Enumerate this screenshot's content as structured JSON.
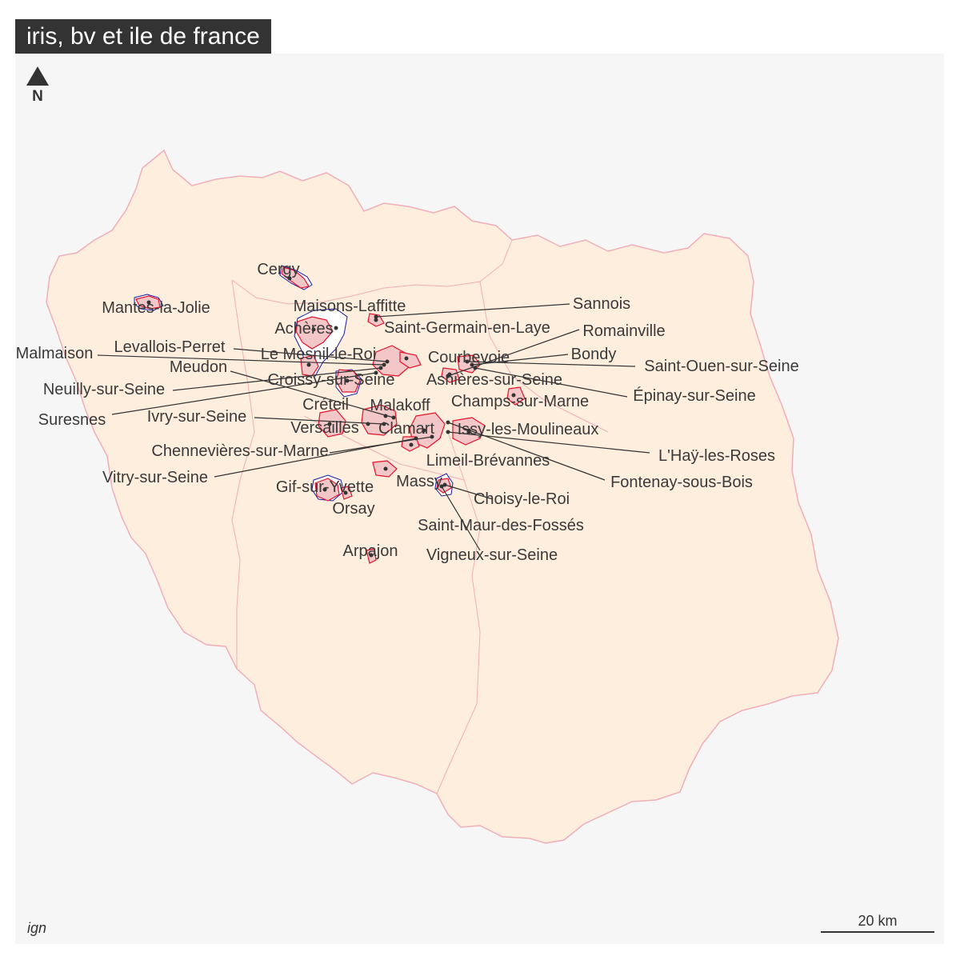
{
  "title": "iris, bv et ile de france",
  "north_label": "N",
  "source": "ign",
  "scale_label": "20 km",
  "colors": {
    "background": "#f6f6f6",
    "region_fill": "#fdeedd",
    "region_border": "#f2aeb8",
    "iris_border": "#e8102a",
    "bv_border": "#1a1aa0",
    "leader_line": "#333333",
    "title_bg": "#333333"
  },
  "cities": [
    {
      "name": "Cergy"
    },
    {
      "name": "Mantes-la-Jolie"
    },
    {
      "name": "Maisons-Laffitte"
    },
    {
      "name": "Sannois"
    },
    {
      "name": "Achères"
    },
    {
      "name": "Saint-Germain-en-Laye"
    },
    {
      "name": "Romainville"
    },
    {
      "name": "Levallois-Perret"
    },
    {
      "name": "Malmaison"
    },
    {
      "name": "Le Mesnil-le-Roi"
    },
    {
      "name": "Courbevoie"
    },
    {
      "name": "Bondy"
    },
    {
      "name": "Meudon"
    },
    {
      "name": "Saint-Ouen-sur-Seine"
    },
    {
      "name": "Croissy-sur-Seine"
    },
    {
      "name": "Asnières-sur-Seine"
    },
    {
      "name": "Neuilly-sur-Seine"
    },
    {
      "name": "Épinay-sur-Seine"
    },
    {
      "name": "Champs-sur-Marne"
    },
    {
      "name": "Créteil"
    },
    {
      "name": "Malakoff"
    },
    {
      "name": "Suresnes"
    },
    {
      "name": "Ivry-sur-Seine"
    },
    {
      "name": "Versailles"
    },
    {
      "name": "Clamart"
    },
    {
      "name": "Issy-les-Moulineaux"
    },
    {
      "name": "Chennevières-sur-Marne"
    },
    {
      "name": "L'Haÿ-les-Roses"
    },
    {
      "name": "Limeil-Brévannes"
    },
    {
      "name": "Vitry-sur-Seine"
    },
    {
      "name": "Fontenay-sous-Bois"
    },
    {
      "name": "Massy"
    },
    {
      "name": "Gif-sur-Yvette"
    },
    {
      "name": "Choisy-le-Roi"
    },
    {
      "name": "Orsay"
    },
    {
      "name": "Saint-Maur-des-Fossés"
    },
    {
      "name": "Arpajon"
    },
    {
      "name": "Vigneux-sur-Seine"
    }
  ]
}
